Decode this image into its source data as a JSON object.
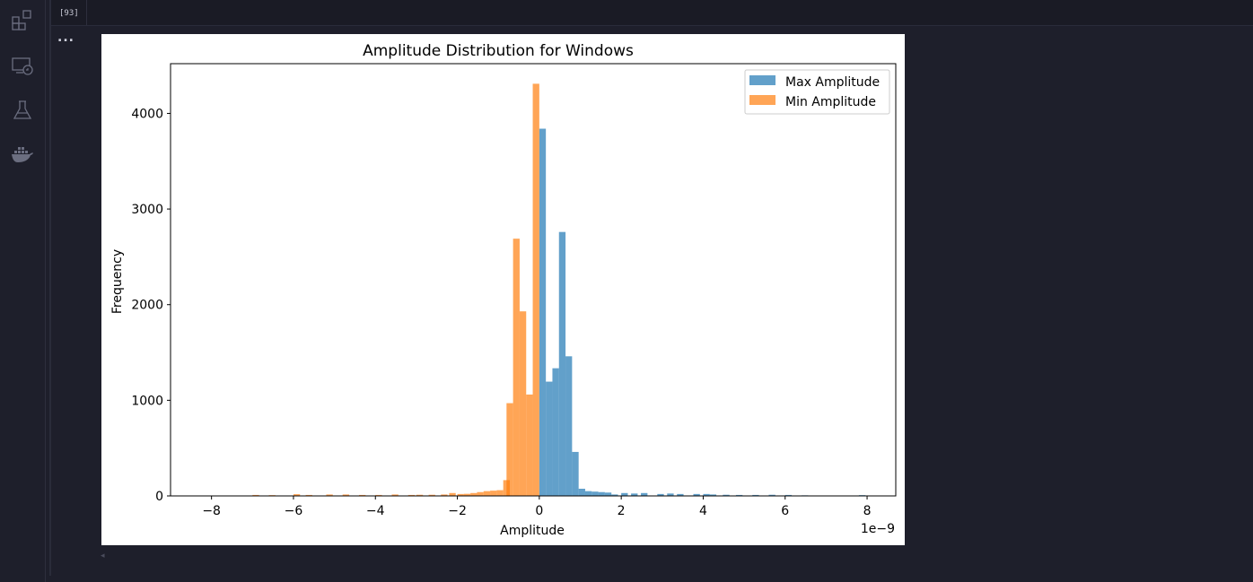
{
  "activity_bar": {
    "icons": [
      "extensions-icon",
      "remote-explorer-icon",
      "testing-flask-icon",
      "docker-whale-icon"
    ]
  },
  "cell": {
    "execution_count": "[93]",
    "output_toggle": "...",
    "scroll_indicator": "◂"
  },
  "colors": {
    "app_background": "#1e1f2b",
    "max_amplitude": "#1f77b4",
    "min_amplitude": "#ff7f0e"
  },
  "chart_data": {
    "type": "histogram",
    "title": "Amplitude Distribution for Windows",
    "xlabel": "Amplitude",
    "ylabel": "Frequency",
    "x_offset_label": "1e−9",
    "xlim": [
      -9,
      8.7
    ],
    "ylim": [
      0,
      4520
    ],
    "xticks": [
      -8,
      -6,
      -4,
      -2,
      0,
      2,
      4,
      6,
      8
    ],
    "xtick_labels": [
      "−8",
      "−6",
      "−4",
      "−2",
      "0",
      "2",
      "4",
      "6",
      "8"
    ],
    "yticks": [
      0,
      1000,
      2000,
      3000,
      4000
    ],
    "ytick_labels": [
      "0",
      "1000",
      "2000",
      "3000",
      "4000"
    ],
    "legend_position": "top-right",
    "alpha": 0.7,
    "series": [
      {
        "name": "Max Amplitude",
        "color": "#1f77b4",
        "bin_width": 0.16,
        "bins": [
          [
            0,
            3840
          ],
          [
            0.16,
            1195
          ],
          [
            0.32,
            1335
          ],
          [
            0.48,
            2760
          ],
          [
            0.64,
            1460
          ],
          [
            0.8,
            460
          ],
          [
            0.96,
            75
          ],
          [
            1.12,
            50
          ],
          [
            1.28,
            45
          ],
          [
            1.44,
            40
          ],
          [
            1.6,
            35
          ],
          [
            1.76,
            15
          ],
          [
            2.0,
            30
          ],
          [
            2.24,
            25
          ],
          [
            2.48,
            30
          ],
          [
            2.88,
            20
          ],
          [
            3.12,
            25
          ],
          [
            3.36,
            20
          ],
          [
            3.76,
            20
          ],
          [
            4.0,
            20
          ],
          [
            4.16,
            15
          ],
          [
            4.48,
            12
          ],
          [
            4.8,
            10
          ],
          [
            5.2,
            10
          ],
          [
            5.6,
            12
          ],
          [
            6.0,
            10
          ],
          [
            6.4,
            6
          ],
          [
            7.8,
            8
          ]
        ]
      },
      {
        "name": "Min Amplitude",
        "color": "#ff7f0e",
        "bin_width": 0.16,
        "bins": [
          [
            -7.0,
            10
          ],
          [
            -6.6,
            8
          ],
          [
            -6.0,
            18
          ],
          [
            -5.7,
            10
          ],
          [
            -5.2,
            15
          ],
          [
            -4.8,
            15
          ],
          [
            -4.4,
            10
          ],
          [
            -4.0,
            10
          ],
          [
            -3.6,
            15
          ],
          [
            -3.2,
            10
          ],
          [
            -3.0,
            12
          ],
          [
            -2.7,
            12
          ],
          [
            -2.4,
            15
          ],
          [
            -2.2,
            30
          ],
          [
            -2.0,
            20
          ],
          [
            -1.84,
            22
          ],
          [
            -1.68,
            30
          ],
          [
            -1.52,
            40
          ],
          [
            -1.36,
            50
          ],
          [
            -1.2,
            55
          ],
          [
            -1.04,
            60
          ],
          [
            -0.88,
            165
          ],
          [
            -0.8,
            970
          ],
          [
            -0.64,
            2690
          ],
          [
            -0.48,
            1930
          ],
          [
            -0.32,
            1060
          ],
          [
            -0.16,
            4310
          ]
        ]
      }
    ]
  }
}
